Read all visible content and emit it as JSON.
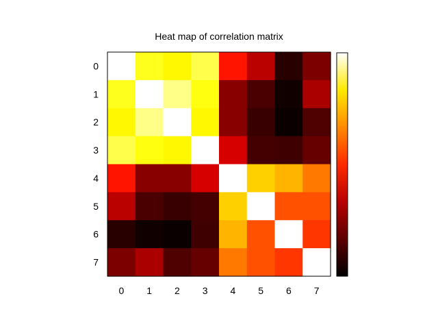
{
  "chart_data": {
    "type": "heatmap",
    "title": "Heat map of correlation matrix",
    "xlabel": "",
    "ylabel": "",
    "x_categories": [
      "0",
      "1",
      "2",
      "3",
      "4",
      "5",
      "6",
      "7"
    ],
    "y_categories": [
      "0",
      "1",
      "2",
      "3",
      "4",
      "5",
      "6",
      "7"
    ],
    "zlim": [
      0,
      1
    ],
    "colormap": "hot",
    "colorbar": true,
    "grid": false,
    "values": [
      [
        1.0,
        0.85,
        0.82,
        0.88,
        0.48,
        0.33,
        0.07,
        0.22
      ],
      [
        0.85,
        1.0,
        0.92,
        0.84,
        0.24,
        0.13,
        0.03,
        0.3
      ],
      [
        0.82,
        0.92,
        1.0,
        0.82,
        0.24,
        0.1,
        0.02,
        0.14
      ],
      [
        0.88,
        0.84,
        0.82,
        1.0,
        0.38,
        0.12,
        0.11,
        0.18
      ],
      [
        0.48,
        0.24,
        0.24,
        0.38,
        1.0,
        0.76,
        0.72,
        0.63
      ],
      [
        0.33,
        0.13,
        0.1,
        0.12,
        0.76,
        1.0,
        0.57,
        0.57
      ],
      [
        0.07,
        0.03,
        0.02,
        0.11,
        0.72,
        0.57,
        1.0,
        0.53
      ],
      [
        0.22,
        0.3,
        0.14,
        0.18,
        0.63,
        0.57,
        0.53,
        1.0
      ]
    ]
  }
}
